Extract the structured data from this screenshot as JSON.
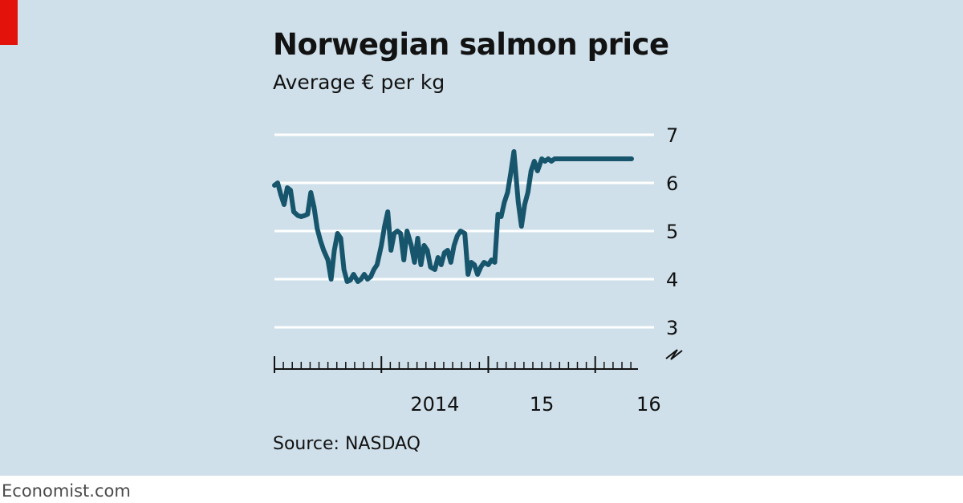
{
  "header": {
    "title": "Norwegian salmon price",
    "subtitle": "Average € per kg"
  },
  "footer": {
    "source": "Source: NASDAQ",
    "brand": "Economist.com"
  },
  "colors": {
    "background": "#cfe0ea",
    "line": "#17556c",
    "gridline": "#ffffff",
    "accent": "#e3120b"
  },
  "chart_data": {
    "type": "line",
    "title": "Norwegian salmon price",
    "subtitle": "Average € per kg",
    "ylim": [
      3,
      7
    ],
    "yticks": [
      3,
      4,
      5,
      6,
      7
    ],
    "y_axis_position": "right",
    "y_axis_break": true,
    "grid": true,
    "x_tick_labels": [
      {
        "label": "2014",
        "x": 2014.0
      },
      {
        "label": "15",
        "x": 2015.0
      },
      {
        "label": "16",
        "x": 2016.0
      }
    ],
    "xlim": [
      2013.0,
      2016.4
    ],
    "x_minor_tick_step": 0.08333333,
    "series": [
      {
        "x": [
          2013.0,
          2013.03,
          2013.06,
          2013.09,
          2013.12,
          2013.15,
          2013.18,
          2013.22,
          2013.25,
          2013.28,
          2013.31,
          2013.34,
          2013.37,
          2013.4,
          2013.43,
          2013.46,
          2013.5,
          2013.53,
          2013.56,
          2013.59,
          2013.62,
          2013.65,
          2013.68,
          2013.71,
          2013.74,
          2013.78,
          2013.81,
          2013.84,
          2013.87,
          2013.9,
          2013.93,
          2013.96,
          2014.0,
          2014.03,
          2014.06,
          2014.09,
          2014.12,
          2014.15,
          2014.18,
          2014.21,
          2014.24,
          2014.28,
          2014.31,
          2014.34,
          2014.37,
          2014.4,
          2014.43,
          2014.46,
          2014.5,
          2014.53,
          2014.56,
          2014.59,
          2014.62,
          2014.65,
          2014.68,
          2014.71,
          2014.74,
          2014.78,
          2014.81,
          2014.84,
          2014.87,
          2014.9,
          2014.93,
          2014.96,
          2015.0,
          2015.03,
          2015.06,
          2015.09,
          2015.12,
          2015.15,
          2015.18,
          2015.21,
          2015.24,
          2015.28,
          2015.31,
          2015.34,
          2015.37,
          2015.4,
          2015.43,
          2015.46,
          2015.5,
          2015.53,
          2015.56,
          2015.59,
          2015.62,
          2015.65,
          2015.68,
          2015.71,
          2015.74,
          2015.78,
          2015.81,
          2015.84,
          2015.87,
          2015.9,
          2015.93,
          2015.96,
          2016.0,
          2016.03,
          2016.06,
          2016.09,
          2016.12,
          2016.15,
          2016.18,
          2016.21,
          2016.24,
          2016.28,
          2016.31,
          2016.34
        ],
        "y": [
          5.95,
          6.0,
          5.75,
          5.55,
          5.9,
          5.85,
          5.4,
          5.32,
          5.3,
          5.32,
          5.35,
          5.8,
          5.5,
          5.05,
          4.8,
          4.6,
          4.4,
          4.0,
          4.6,
          4.95,
          4.85,
          4.2,
          3.95,
          3.98,
          4.1,
          3.95,
          4.0,
          4.1,
          4.0,
          4.05,
          4.2,
          4.3,
          4.7,
          5.1,
          5.4,
          4.6,
          4.95,
          5.0,
          4.95,
          4.4,
          5.0,
          4.7,
          4.35,
          4.85,
          4.3,
          4.7,
          4.6,
          4.25,
          4.2,
          4.45,
          4.3,
          4.55,
          4.6,
          4.35,
          4.7,
          4.9,
          5.0,
          4.95,
          4.1,
          4.35,
          4.3,
          4.1,
          4.25,
          4.35,
          4.3,
          4.4,
          4.35,
          5.35,
          5.3,
          5.6,
          5.8,
          6.2,
          6.65,
          5.6,
          5.1,
          5.55,
          5.8,
          6.25,
          6.45,
          6.25,
          6.5,
          6.45,
          6.5,
          6.45,
          6.5,
          6.5,
          6.5,
          6.5,
          6.5,
          6.5,
          6.5,
          6.5,
          6.5,
          6.5,
          6.5,
          6.5,
          6.5,
          6.5,
          6.5,
          6.5,
          6.5,
          6.5,
          6.5,
          6.5,
          6.5,
          6.5,
          6.5,
          6.5
        ]
      }
    ]
  }
}
